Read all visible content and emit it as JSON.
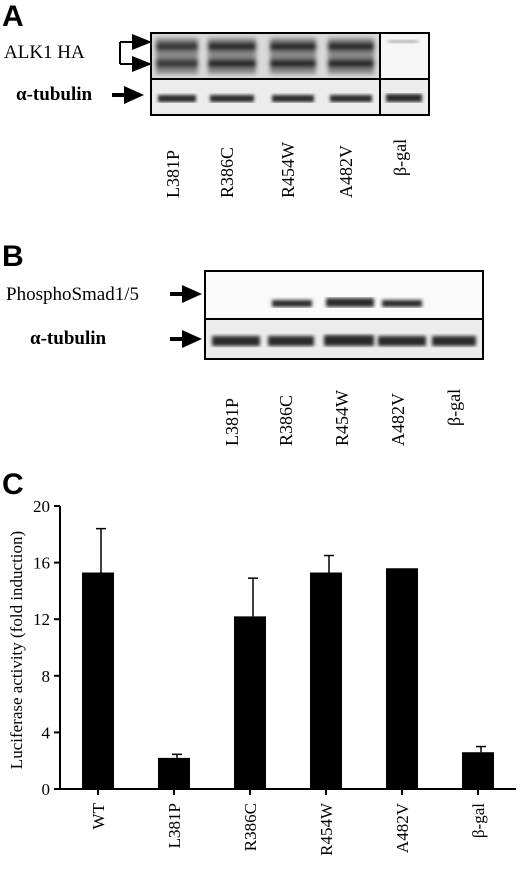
{
  "panel_a": {
    "letter": "A",
    "label_alk1": "ALK1 HA",
    "label_tubulin_alpha": "α",
    "label_tubulin_rest": "-tubulin",
    "lanes": [
      "L381P",
      "R386C",
      "R454W",
      "A482V",
      "β-gal"
    ]
  },
  "panel_b": {
    "letter": "B",
    "label_phospho": "PhosphoSmad1/5",
    "label_tubulin_alpha": "α",
    "label_tubulin_rest": "-tubulin",
    "lanes": [
      "L381P",
      "R386C",
      "R454W",
      "A482V",
      "β-gal"
    ]
  },
  "panel_c": {
    "letter": "C"
  },
  "chart_data": {
    "type": "bar",
    "categories": [
      "WT",
      "L381P",
      "R386C",
      "R454W",
      "A482V",
      "β-gal"
    ],
    "values": [
      15.3,
      2.2,
      12.2,
      15.3,
      15.6,
      2.6
    ],
    "errors": [
      3.1,
      0.25,
      2.7,
      1.2,
      0.0,
      0.4
    ],
    "ylabel": "Luciferase activity (fold induction)",
    "xlabel": "",
    "ylim": [
      0,
      20
    ],
    "yticks": [
      0,
      4,
      8,
      12,
      16,
      20
    ],
    "bar_color": "#000000",
    "grid": false
  }
}
